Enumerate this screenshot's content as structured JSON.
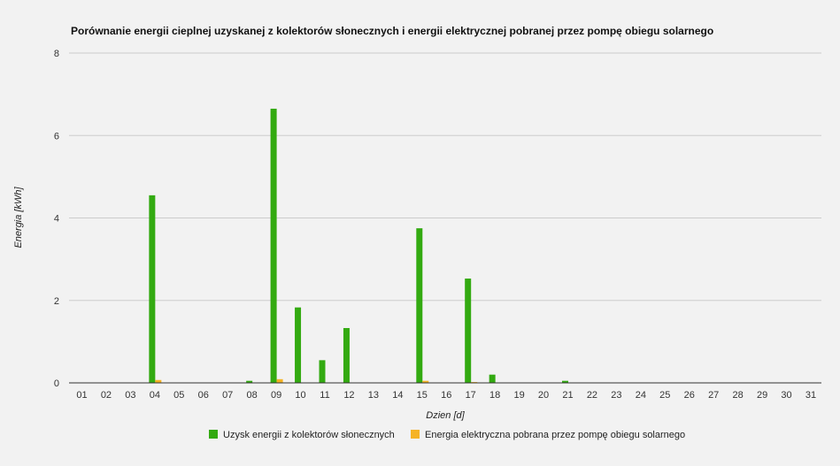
{
  "chart_data": {
    "type": "bar",
    "title": "Porównanie energii cieplnej uzyskanej z kolektorów słonecznych i energii elektrycznej pobranej przez pompę obiegu solarnego",
    "xlabel": "Dzien [d]",
    "ylabel": "Energia [kWh]",
    "ylim": [
      0,
      8
    ],
    "yticks": [
      "0",
      "2",
      "4",
      "6",
      "8"
    ],
    "grid": true,
    "legend_position": "bottom",
    "categories": [
      "01",
      "02",
      "03",
      "04",
      "05",
      "06",
      "07",
      "08",
      "09",
      "10",
      "11",
      "12",
      "13",
      "14",
      "15",
      "16",
      "17",
      "18",
      "19",
      "20",
      "21",
      "22",
      "23",
      "24",
      "25",
      "26",
      "27",
      "28",
      "29",
      "30",
      "31"
    ],
    "series": [
      {
        "name": "Uzysk energii z kolektorów słonecznych",
        "color": "#33aa11",
        "values": [
          0,
          0,
          0,
          4.55,
          0,
          0,
          0,
          0.05,
          6.65,
          1.83,
          0.55,
          1.33,
          0,
          0,
          3.75,
          0,
          2.53,
          0.2,
          0,
          0,
          0.05,
          0,
          0,
          0,
          0,
          0,
          0,
          0,
          0,
          0,
          0
        ]
      },
      {
        "name": "Energia elektryczna pobrana przez pompę obiegu solarnego",
        "color": "#f5b324",
        "values": [
          0,
          0,
          0,
          0.07,
          0,
          0,
          0,
          0,
          0.09,
          0,
          0,
          0,
          0,
          0,
          0.05,
          0,
          0.02,
          0,
          0,
          0,
          0,
          0,
          0,
          0,
          0,
          0,
          0,
          0,
          0,
          0,
          0
        ]
      }
    ]
  }
}
